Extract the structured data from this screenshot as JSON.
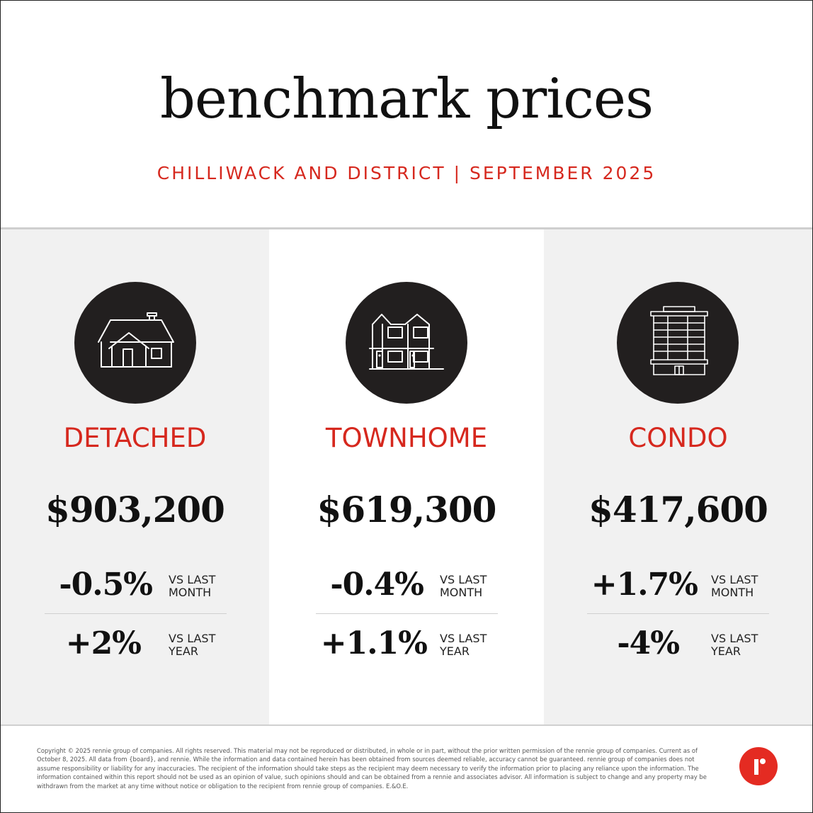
{
  "header": {
    "title": "benchmark prices",
    "subtitle": "CHILLIWACK AND DISTRICT | SEPTEMBER 2025"
  },
  "colors": {
    "accent_red": "#d6281e",
    "icon_circle": "#221f1f",
    "panel_gray": "#f1f1f1"
  },
  "categories": [
    {
      "icon": "detached-house-icon",
      "type": "DETACHED",
      "price": "$903,200",
      "month_change": "-0.5%",
      "month_label_1": "VS LAST",
      "month_label_2": "MONTH",
      "year_change": "+2%",
      "year_label_1": "VS LAST",
      "year_label_2": "YEAR"
    },
    {
      "icon": "townhome-icon",
      "type": "TOWNHOME",
      "price": "$619,300",
      "month_change": "-0.4%",
      "month_label_1": "VS LAST",
      "month_label_2": "MONTH",
      "year_change": "+1.1%",
      "year_label_1": "VS LAST",
      "year_label_2": "YEAR"
    },
    {
      "icon": "condo-building-icon",
      "type": "CONDO",
      "price": "$417,600",
      "month_change": "+1.7%",
      "month_label_1": "VS LAST",
      "month_label_2": "MONTH",
      "year_change": "-4%",
      "year_label_1": "VS LAST",
      "year_label_2": "YEAR"
    }
  ],
  "footer": {
    "disclaimer": "Copyright © 2025 rennie group of companies. All rights reserved. This material may not be reproduced or distributed, in whole or in part, without the prior written permission of the rennie group of companies. Current as of October 8, 2025. All data from {board}, and rennie. While the information and data contained herein has been obtained from sources deemed reliable, accuracy cannot be guaranteed. rennie group of companies does not assume responsibility or liability for any inaccuracies. The recipient of the information should take steps as the recipient may deem necessary to verify the information prior to placing any reliance upon the information. The information contained within this report should not be used as an opinion of value, such opinions should and can be obtained from a rennie and associates advisor. All information is subject to change and any property may be withdrawn from the market at any time without notice or obligation to the recipient from rennie group of companies. E.&O.E.",
    "logo": "rennie-logo"
  }
}
